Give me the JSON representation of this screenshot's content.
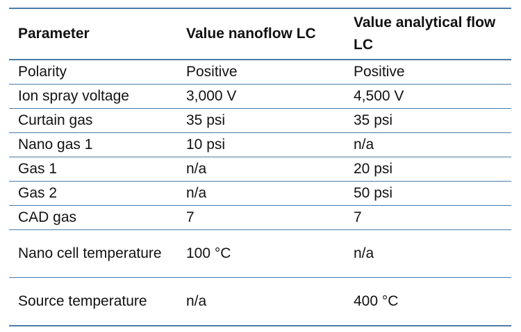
{
  "table": {
    "headers": [
      "Parameter",
      "Value nanoflow LC",
      "Value analytical flow LC"
    ],
    "rows": [
      [
        "Polarity",
        "Positive",
        "Positive"
      ],
      [
        "Ion spray voltage",
        "3,000 V",
        "4,500 V"
      ],
      [
        "Curtain gas",
        "35 psi",
        "35 psi"
      ],
      [
        "Nano gas 1",
        "10 psi",
        "n/a"
      ],
      [
        "Gas 1",
        "n/a",
        "20 psi"
      ],
      [
        "Gas 2",
        "n/a",
        "50 psi"
      ],
      [
        "CAD gas",
        "7",
        "7"
      ],
      [
        "Nano cell temperature",
        "100 °C",
        "n/a"
      ],
      [
        "Source temperature",
        "n/a",
        "400 °C"
      ]
    ]
  },
  "colors": {
    "rule": "#4a7ba8",
    "text": "#111111"
  }
}
